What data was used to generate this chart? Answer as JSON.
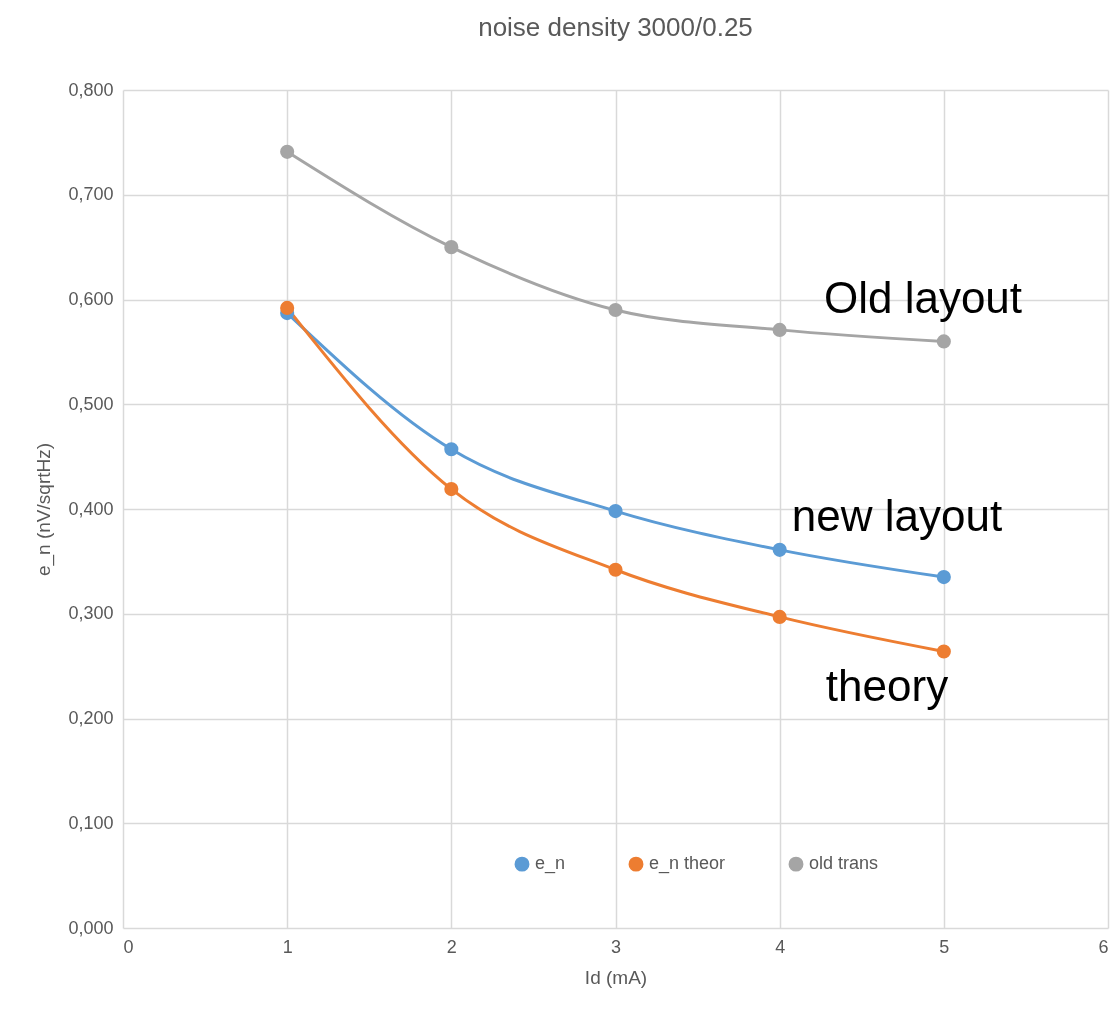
{
  "chart_data": {
    "type": "line",
    "title": "noise density  3000/0.25",
    "xlabel": "Id (mA)",
    "ylabel": "e_n (nV/sqrtHz)",
    "x": [
      1,
      2,
      3,
      4,
      5
    ],
    "series": [
      {
        "name": "e_n",
        "color": "#5b9bd5",
        "values": [
          0.587,
          0.457,
          0.398,
          0.361,
          0.335
        ]
      },
      {
        "name": "e_n theor",
        "color": "#ed7d31",
        "values": [
          0.592,
          0.419,
          0.342,
          0.297,
          0.264
        ]
      },
      {
        "name": "old trans",
        "color": "#a5a5a5",
        "values": [
          0.741,
          0.65,
          0.59,
          0.571,
          0.56
        ]
      }
    ],
    "xlim": [
      0,
      6
    ],
    "xticks": [
      0,
      1,
      2,
      3,
      4,
      5,
      6
    ],
    "ylim": [
      0,
      0.8
    ],
    "yticks": [
      {
        "value": 0,
        "label": "0,000"
      },
      {
        "value": 0.1,
        "label": "0,100"
      },
      {
        "value": 0.2,
        "label": "0,200"
      },
      {
        "value": 0.3,
        "label": "0,300"
      },
      {
        "value": 0.4,
        "label": "0,400"
      },
      {
        "value": 0.5,
        "label": "0,500"
      },
      {
        "value": 0.6,
        "label": "0,600"
      },
      {
        "value": 0.7,
        "label": "0,700"
      },
      {
        "value": 0.8,
        "label": "0,800"
      }
    ],
    "annotations": [
      "Old layout",
      "new layout",
      "theory"
    ],
    "grid": true,
    "legend": "bottom",
    "marker": "circle",
    "line_style": "solid"
  }
}
